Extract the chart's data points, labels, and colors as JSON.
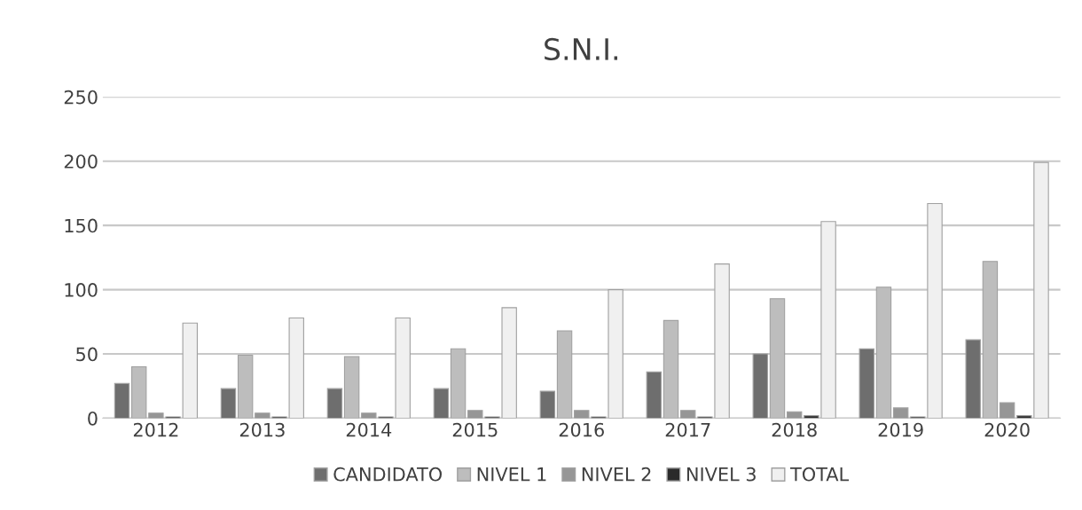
{
  "chart_data": {
    "type": "bar",
    "title": "S.N.I.",
    "categories": [
      "2012",
      "2013",
      "2014",
      "2015",
      "2016",
      "2017",
      "2018",
      "2019",
      "2020"
    ],
    "series": [
      {
        "name": "CANDIDATO",
        "color": "#6e6e6e",
        "values": [
          27,
          23,
          23,
          23,
          21,
          36,
          50,
          54,
          61
        ]
      },
      {
        "name": "NIVEL 1",
        "color": "#bdbdbd",
        "values": [
          40,
          49,
          48,
          54,
          68,
          76,
          93,
          102,
          122
        ]
      },
      {
        "name": "NIVEL 2",
        "color": "#969696",
        "values": [
          4,
          4,
          4,
          6,
          6,
          6,
          5,
          8,
          12
        ]
      },
      {
        "name": "NIVEL 3",
        "color": "#2a2a2a",
        "values": [
          1,
          1,
          1,
          1,
          1,
          1,
          2,
          1,
          2
        ]
      },
      {
        "name": "TOTAL",
        "color": "#f0f0f0",
        "values": [
          74,
          78,
          78,
          86,
          100,
          120,
          153,
          167,
          199
        ]
      }
    ],
    "ylim": [
      0,
      250
    ],
    "yticks": [
      0,
      50,
      100,
      150,
      200,
      250
    ],
    "grid": "y",
    "legend": "bottom"
  }
}
